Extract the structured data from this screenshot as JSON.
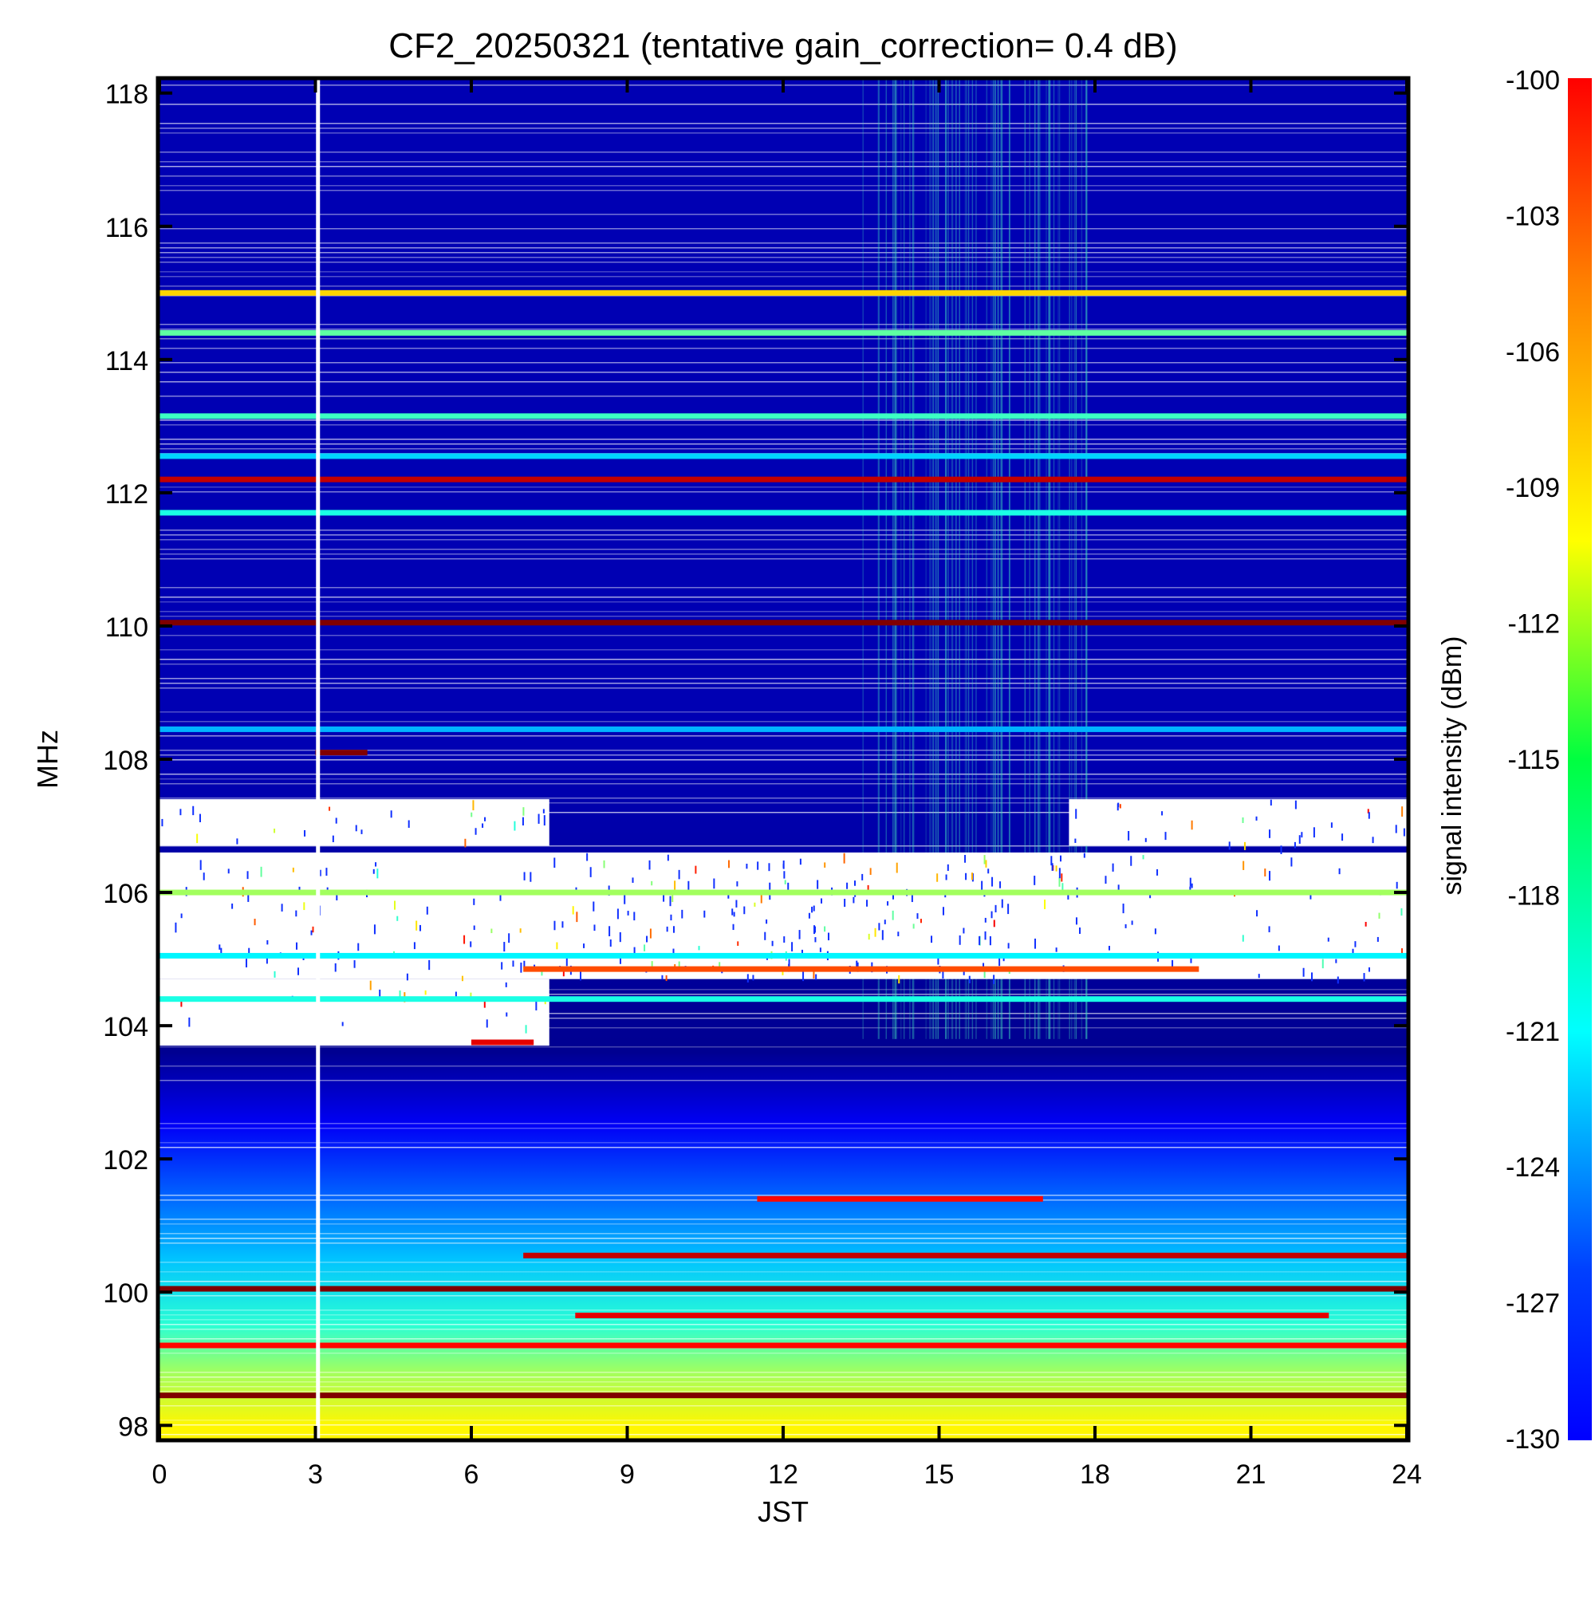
{
  "chart_data": {
    "type": "heatmap",
    "title": "CF2_20250321 (tentative gain_correction=  0.4 dB)",
    "xlabel": "JST",
    "ylabel": "MHz",
    "xlim": [
      0,
      24
    ],
    "ylim": [
      97.8,
      118.2
    ],
    "x_ticks": [
      0,
      3,
      6,
      9,
      12,
      15,
      18,
      21,
      24
    ],
    "y_ticks": [
      98,
      100,
      102,
      104,
      106,
      108,
      110,
      112,
      114,
      116,
      118
    ],
    "colorbar": {
      "label": "signal intensity (dBm)",
      "range": [
        -130,
        -100
      ],
      "ticks": [
        -100,
        -103,
        -106,
        -109,
        -112,
        -115,
        -118,
        -121,
        -124,
        -127,
        -130
      ],
      "colormap": "jet"
    },
    "background_gradient": [
      {
        "freq": 118,
        "level": -128.5
      },
      {
        "freq": 108.2,
        "level": -128.5
      },
      {
        "freq": 103.6,
        "level": -129.5
      },
      {
        "freq": 102.5,
        "level": -126.5
      },
      {
        "freq": 101.5,
        "level": -123.5
      },
      {
        "freq": 100.5,
        "level": -120.5
      },
      {
        "freq": 99.5,
        "level": -117.5
      },
      {
        "freq": 98.8,
        "level": -114
      },
      {
        "freq": 98.0,
        "level": -111
      }
    ],
    "carriers": [
      {
        "freq": 115.0,
        "level": -110,
        "start": 0,
        "end": 24
      },
      {
        "freq": 114.4,
        "level": -116,
        "start": 0,
        "end": 24
      },
      {
        "freq": 113.15,
        "level": -117,
        "start": 0,
        "end": 24
      },
      {
        "freq": 112.55,
        "level": -120,
        "start": 0,
        "end": 24
      },
      {
        "freq": 112.2,
        "level": -102,
        "start": 0,
        "end": 24
      },
      {
        "freq": 111.7,
        "level": -118,
        "start": 0,
        "end": 24
      },
      {
        "freq": 110.05,
        "level": -100,
        "start": 0,
        "end": 24
      },
      {
        "freq": 108.45,
        "level": -121,
        "start": 0,
        "end": 24
      },
      {
        "freq": 108.1,
        "level": -100,
        "start": 3.0,
        "end": 4.0
      },
      {
        "freq": 106.0,
        "level": -114,
        "start": 0,
        "end": 24
      },
      {
        "freq": 105.05,
        "level": -119,
        "start": 0,
        "end": 24
      },
      {
        "freq": 104.85,
        "level": -106,
        "start": 7,
        "end": 20
      },
      {
        "freq": 104.4,
        "level": -118,
        "start": 0,
        "end": 24
      },
      {
        "freq": 103.75,
        "level": -103,
        "start": 6,
        "end": 7.2
      },
      {
        "freq": 101.4,
        "level": -104,
        "start": 11.5,
        "end": 17
      },
      {
        "freq": 100.55,
        "level": -102,
        "start": 7,
        "end": 24
      },
      {
        "freq": 100.05,
        "level": -100,
        "start": 0,
        "end": 24
      },
      {
        "freq": 99.65,
        "level": -103,
        "start": 8,
        "end": 22.5
      },
      {
        "freq": 99.2,
        "level": -104,
        "start": 0,
        "end": 24
      },
      {
        "freq": 98.45,
        "level": -100,
        "start": 0,
        "end": 24
      }
    ],
    "blank_bands": [
      {
        "from": 104.7,
        "to": 106.6,
        "start": 0,
        "end": 24
      },
      {
        "from": 106.7,
        "to": 107.4,
        "start": 0,
        "end": 7.5
      },
      {
        "from": 106.7,
        "to": 107.4,
        "start": 17.5,
        "end": 24
      },
      {
        "from": 103.7,
        "to": 104.7,
        "start": 0,
        "end": 7.5
      }
    ],
    "data_gap": {
      "x": 3.05
    }
  }
}
